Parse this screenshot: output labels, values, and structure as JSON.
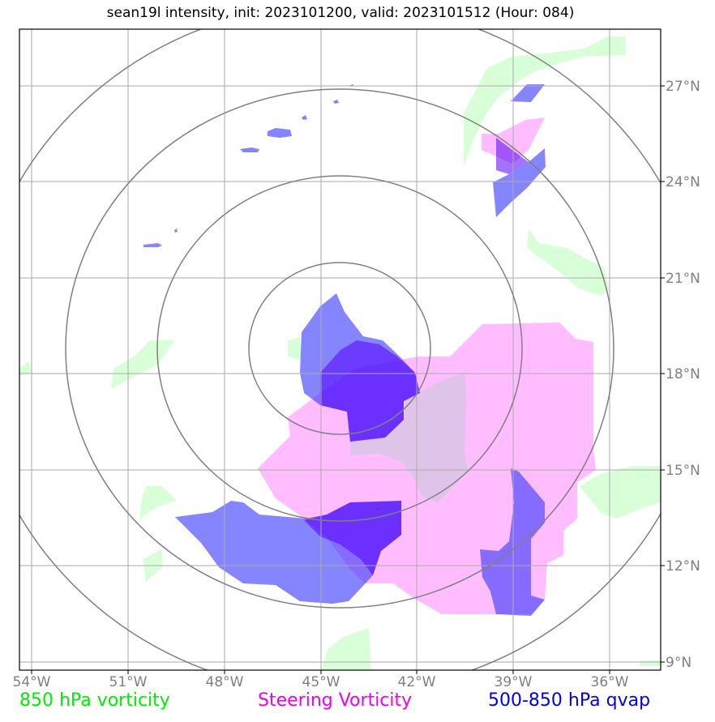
{
  "title": "sean19l intensity, init: 2023101200, valid: 2023101512 (Hour: 084)",
  "lon_ticks": [
    "54°W",
    "51°W",
    "48°W",
    "45°W",
    "42°W",
    "39°W",
    "36°W"
  ],
  "lat_ticks": [
    "27°N",
    "24°N",
    "21°N",
    "18°N",
    "15°N",
    "12°N",
    "9°N"
  ],
  "legend": [
    {
      "label": "850 hPa vorticity",
      "color": "#00ee00"
    },
    {
      "label": "Steering Vorticity",
      "color": "#ee00ee"
    },
    {
      "label": "500-850 hPa qvap",
      "color": "#0000ee"
    }
  ],
  "colors": {
    "vorticity_fill": "#ccffcc",
    "steering_fill": "#ff99ff",
    "qvap_fill": "#3333ff",
    "grid": "#aaaaaa",
    "range_rings": "#808080"
  }
}
